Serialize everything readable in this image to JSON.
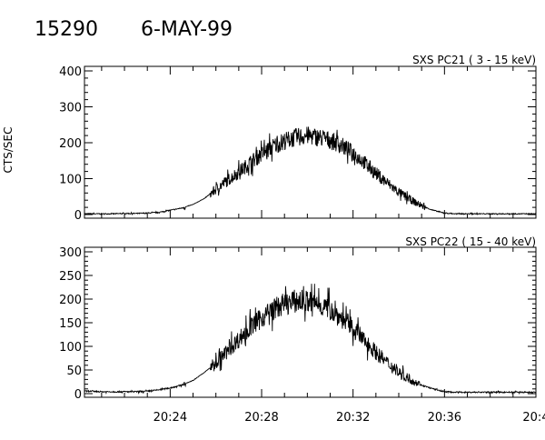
{
  "header": {
    "id": "15290",
    "date": "6-MAY-99"
  },
  "chart_data": [
    {
      "type": "line",
      "title": "SXS PC21  (  3 - 15 keV)",
      "ylabel": "CTS/SEC",
      "ylim": [
        0,
        400
      ],
      "yticks": [
        "0",
        "100",
        "200",
        "300",
        "400"
      ],
      "xlim": [
        "20:20:15",
        "20:40:00"
      ],
      "xticks": [
        "20:24",
        "20:28",
        "20:32",
        "20:36",
        "20:4"
      ],
      "x": [
        "20:20:30",
        "20:21:00",
        "20:21:30",
        "20:22:00",
        "20:22:30",
        "20:23:00",
        "20:23:30",
        "20:24:00",
        "20:24:30",
        "20:25:00",
        "20:25:30",
        "20:26:00",
        "20:26:30",
        "20:27:00",
        "20:27:30",
        "20:28:00",
        "20:28:30",
        "20:29:00",
        "20:29:30",
        "20:30:00",
        "20:30:30",
        "20:31:00",
        "20:31:30",
        "20:32:00",
        "20:32:30",
        "20:33:00",
        "20:33:30",
        "20:34:00",
        "20:34:30",
        "20:35:00",
        "20:35:30",
        "20:36:00",
        "20:36:30",
        "20:37:00",
        "20:37:30",
        "20:38:00",
        "20:38:30",
        "20:39:00",
        "20:39:30",
        "20:40:00"
      ],
      "series": [
        {
          "values": [
            2,
            2,
            2,
            3,
            3,
            4,
            6,
            12,
            18,
            28,
            45,
            70,
            95,
            118,
            145,
            168,
            190,
            205,
            215,
            220,
            215,
            207,
            192,
            172,
            145,
            115,
            88,
            62,
            42,
            24,
            12,
            4,
            2,
            2,
            2,
            2,
            2,
            2,
            2,
            2
          ]
        }
      ]
    },
    {
      "type": "line",
      "title": "SXS PC22  ( 15 - 40 keV)",
      "ylabel": "",
      "ylim": [
        0,
        300
      ],
      "yticks": [
        "0",
        "50",
        "100",
        "150",
        "200",
        "250",
        "300"
      ],
      "xlim": [
        "20:20:15",
        "20:40:00"
      ],
      "xticks": [
        "20:24",
        "20:28",
        "20:32",
        "20:36",
        "20:4"
      ],
      "x": [
        "20:20:30",
        "20:21:00",
        "20:21:30",
        "20:22:00",
        "20:22:30",
        "20:23:00",
        "20:23:30",
        "20:24:00",
        "20:24:30",
        "20:25:00",
        "20:25:30",
        "20:26:00",
        "20:26:30",
        "20:27:00",
        "20:27:30",
        "20:28:00",
        "20:28:30",
        "20:29:00",
        "20:29:30",
        "20:30:00",
        "20:30:30",
        "20:31:00",
        "20:31:30",
        "20:32:00",
        "20:32:30",
        "20:33:00",
        "20:33:30",
        "20:34:00",
        "20:34:30",
        "20:35:00",
        "20:35:30",
        "20:36:00",
        "20:36:30",
        "20:37:00",
        "20:37:30",
        "20:38:00",
        "20:38:30",
        "20:39:00",
        "20:39:30",
        "20:40:00"
      ],
      "series": [
        {
          "values": [
            5,
            4,
            4,
            4,
            4,
            5,
            8,
            12,
            18,
            28,
            45,
            65,
            90,
            115,
            140,
            160,
            178,
            190,
            196,
            195,
            190,
            178,
            160,
            138,
            112,
            88,
            65,
            45,
            30,
            18,
            10,
            4,
            3,
            3,
            3,
            3,
            3,
            3,
            3,
            3
          ]
        }
      ]
    }
  ]
}
